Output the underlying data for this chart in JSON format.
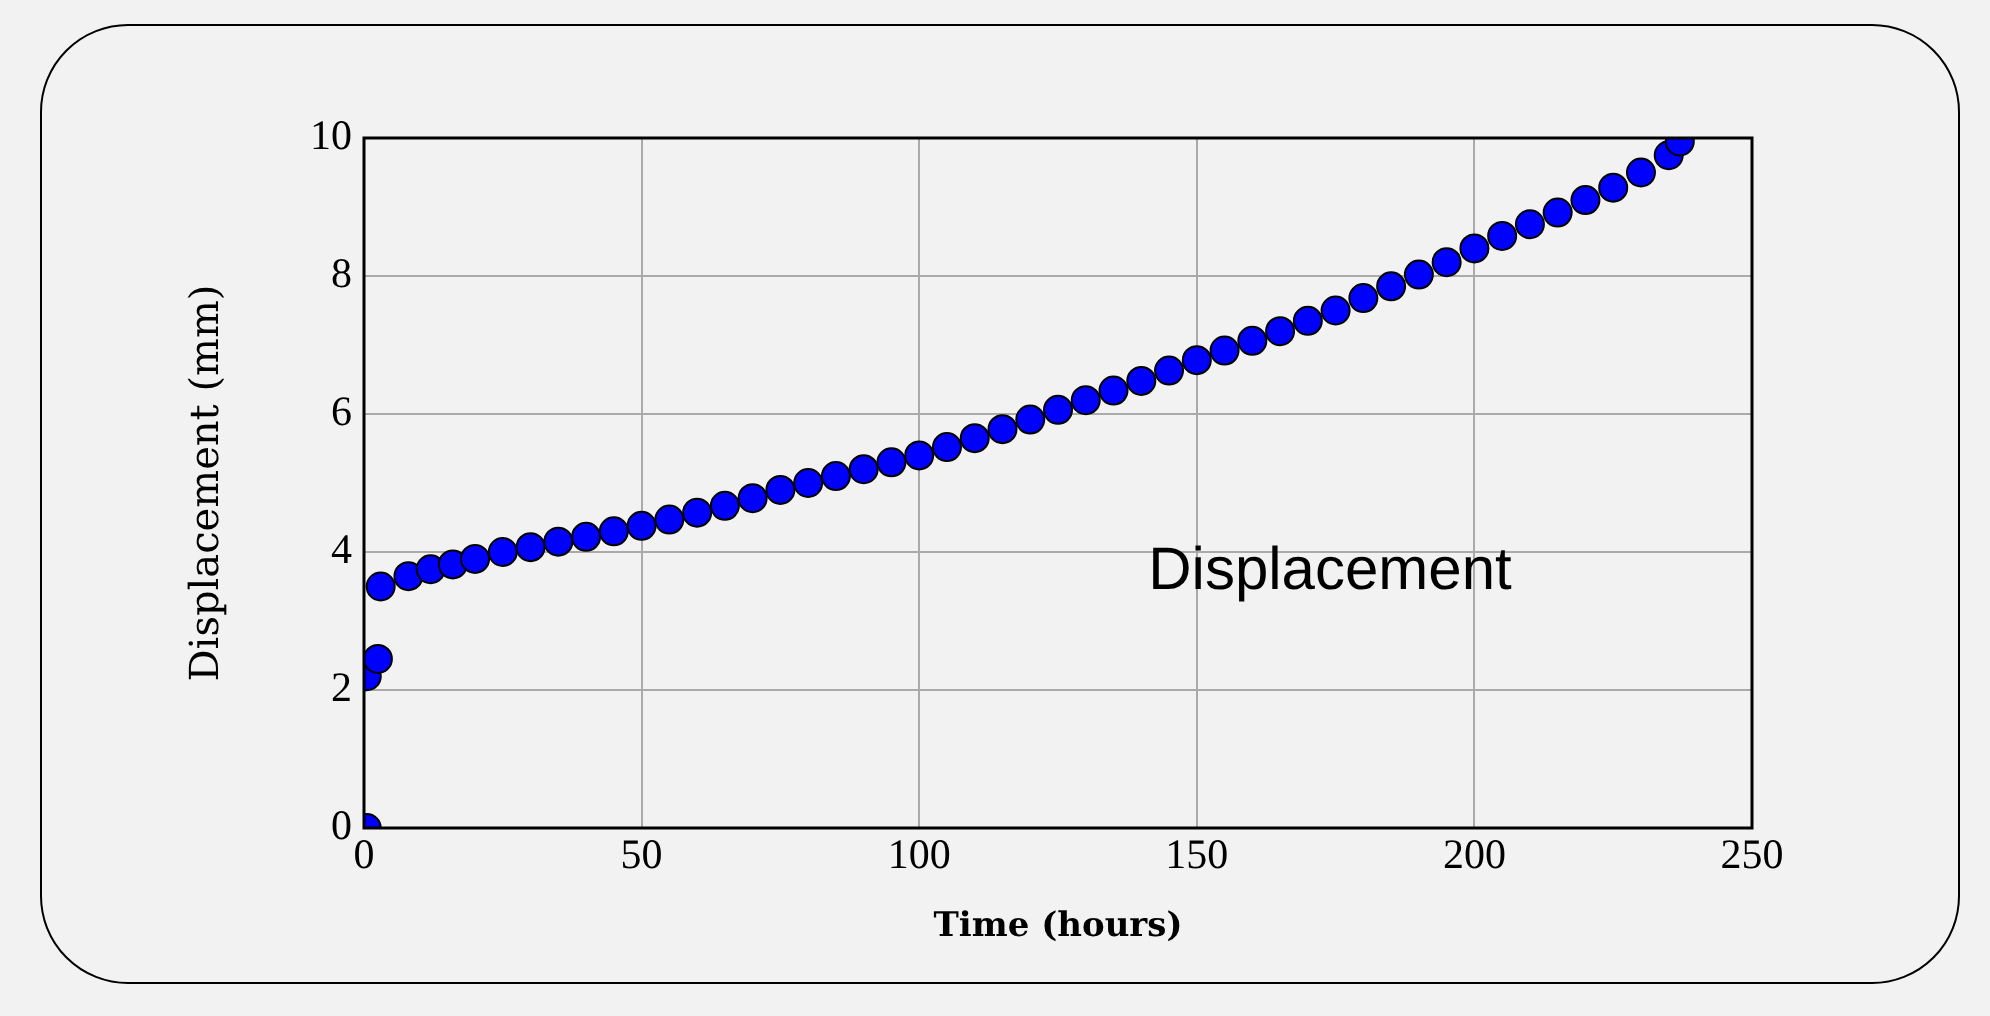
{
  "chart_data": {
    "type": "scatter",
    "xlabel": "Time (hours)",
    "ylabel": "Displacement (mm)",
    "annotations": [
      "Displacement"
    ],
    "x": [
      0.5,
      0.5,
      2.5,
      3,
      8,
      12,
      16,
      20,
      25,
      30,
      35,
      40,
      45,
      50,
      55,
      60,
      65,
      70,
      75,
      80,
      85,
      90,
      95,
      100,
      105,
      110,
      115,
      120,
      125,
      130,
      135,
      140,
      145,
      150,
      155,
      160,
      165,
      170,
      175,
      180,
      185,
      190,
      195,
      200,
      205,
      210,
      215,
      220,
      225,
      230,
      235,
      237
    ],
    "series": [
      {
        "color": "#0000ff",
        "values": [
          0,
          2.2,
          2.45,
          3.5,
          3.65,
          3.75,
          3.82,
          3.9,
          4.0,
          4.07,
          4.15,
          4.22,
          4.3,
          4.38,
          4.47,
          4.57,
          4.67,
          4.78,
          4.9,
          5.0,
          5.1,
          5.2,
          5.3,
          5.4,
          5.52,
          5.65,
          5.78,
          5.92,
          6.06,
          6.2,
          6.34,
          6.48,
          6.63,
          6.78,
          6.92,
          7.06,
          7.2,
          7.35,
          7.5,
          7.68,
          7.85,
          8.02,
          8.2,
          8.4,
          8.58,
          8.75,
          8.92,
          9.1,
          9.28,
          9.5,
          9.75,
          9.95
        ]
      }
    ],
    "xlim": [
      0,
      250
    ],
    "xticks": [
      0,
      50,
      100,
      150,
      200,
      250
    ],
    "ylim": [
      0,
      10
    ],
    "yticks": [
      0,
      2,
      4,
      6,
      8,
      10
    ],
    "grid": true,
    "legend": false,
    "marker": "circle"
  }
}
